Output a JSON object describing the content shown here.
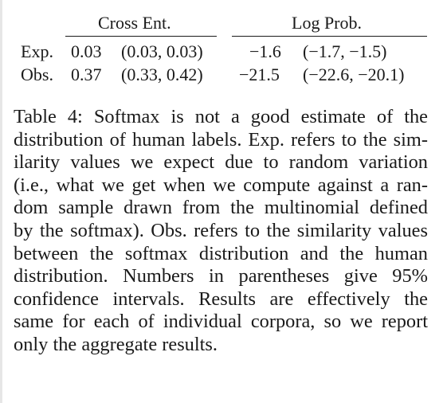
{
  "table": {
    "group_headers": [
      "Cross Ent.",
      "Log Prob."
    ],
    "rows": [
      {
        "label": "Exp.",
        "cross_ent_value": "0.03",
        "cross_ent_ci": "(0.03, 0.03)",
        "log_prob_value": "−1.6",
        "log_prob_ci": "(−1.7, −1.5)"
      },
      {
        "label": "Obs.",
        "cross_ent_value": "0.37",
        "cross_ent_ci": "(0.33, 0.42)",
        "log_prob_value": "−21.5",
        "log_prob_ci": "(−22.6, −20.1)"
      }
    ]
  },
  "caption": {
    "lines": [
      "Table 4: Softmax is not a good estimate of the",
      "distribution of human labels. Exp. refers to the sim-",
      "ilarity values we expect due to random variation",
      "(i.e., what we get when we compute against a ran-",
      "dom sample drawn from the multinomial defined",
      "by the softmax). Obs. refers to the similarity values",
      "between the softmax distribution and the human",
      "distribution. Numbers in parentheses give 95%",
      "confidence intervals. Results are effectively the",
      "same for each of individual corpora, so we report",
      "only the aggregate results."
    ]
  }
}
